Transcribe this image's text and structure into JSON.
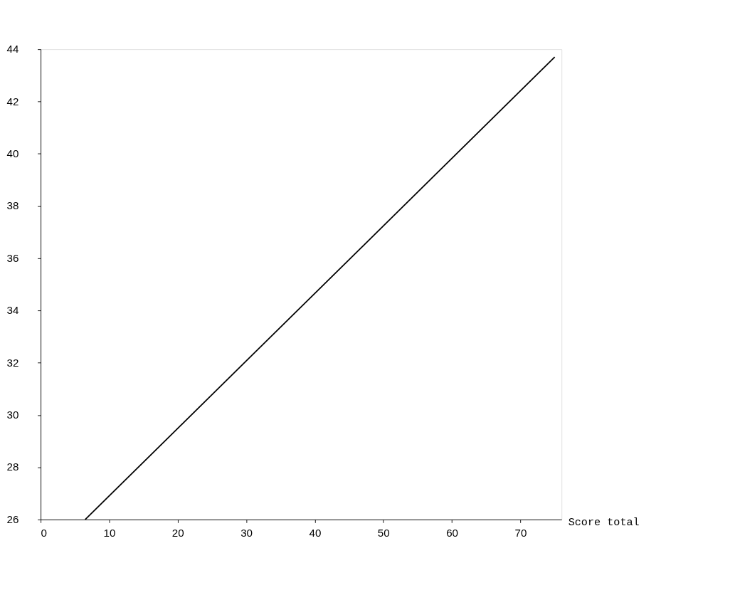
{
  "chart_data": {
    "type": "line",
    "xlabel": "Score total",
    "series": [
      {
        "color": "#000000",
        "x": [
          6.5,
          75
        ],
        "values": [
          26,
          43.7
        ]
      }
    ],
    "xlim": [
      0,
      76
    ],
    "ylim": [
      26,
      44
    ],
    "xticks": [
      0,
      10,
      20,
      30,
      40,
      50,
      60,
      70
    ],
    "yticks": [
      26,
      28,
      30,
      32,
      34,
      36,
      38,
      40,
      42,
      44
    ],
    "grid": false,
    "marker": "none",
    "line_style": "solid"
  }
}
